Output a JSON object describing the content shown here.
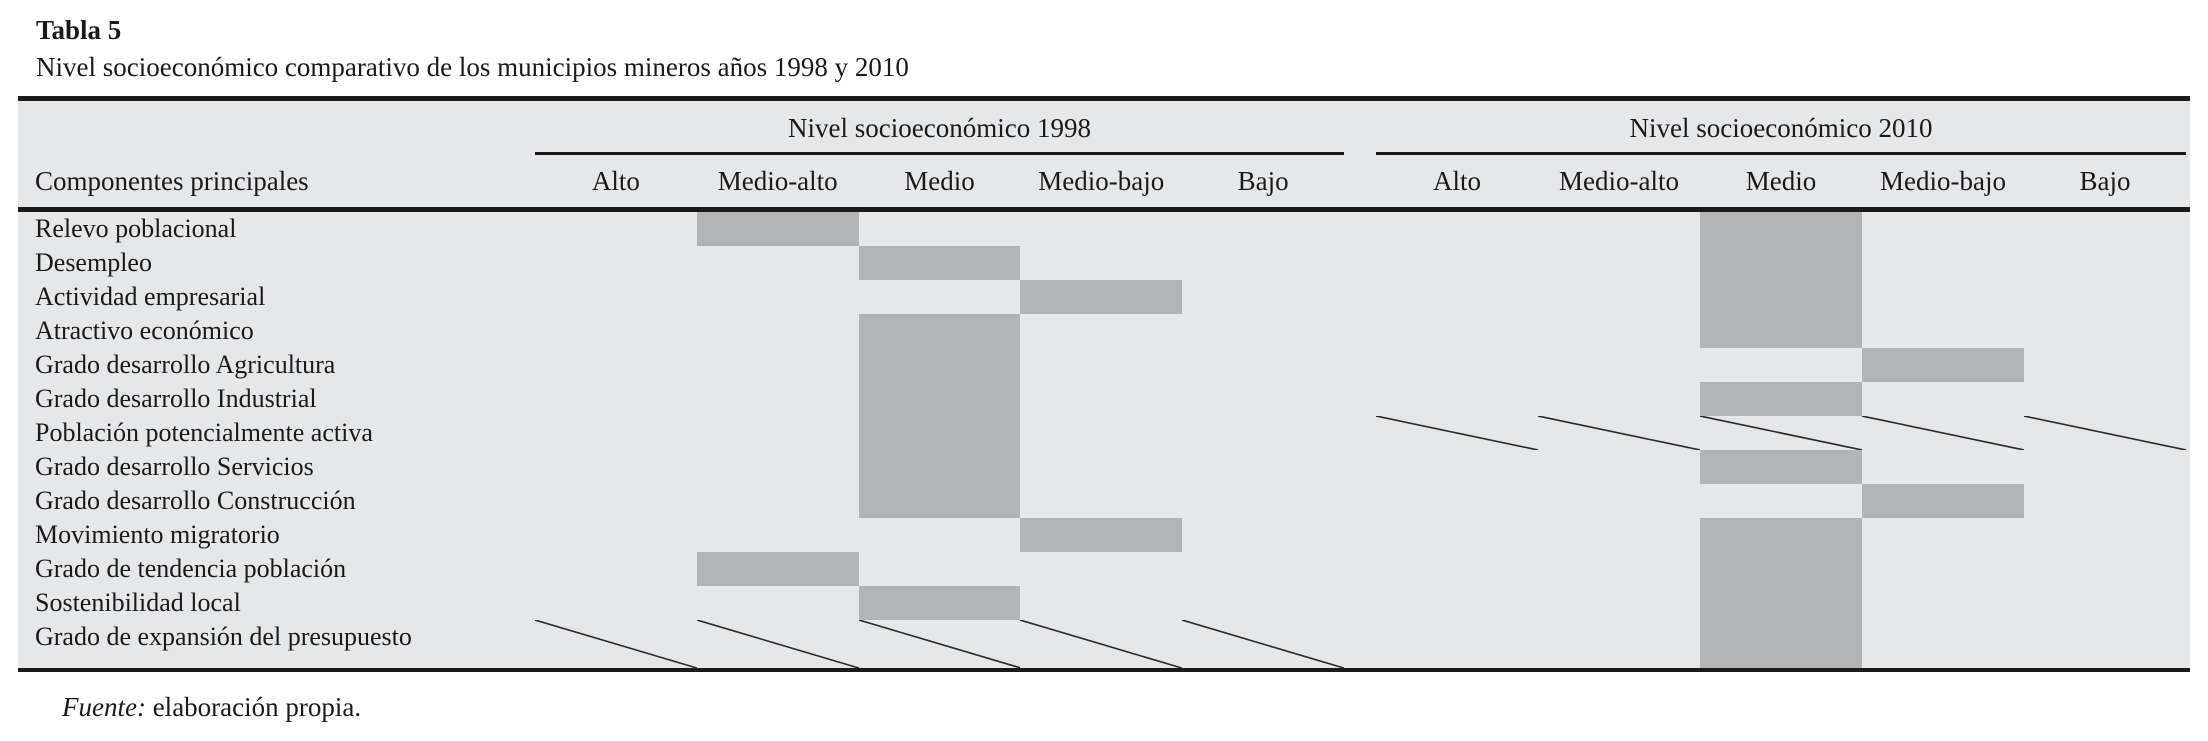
{
  "table": {
    "label": "Tabla 5",
    "caption": "Nivel socioeconómico comparativo de los municipios mineros años 1998 y 2010",
    "col_group_label": "Componentes principales",
    "groups": [
      {
        "key": "y1998",
        "title": "Nivel socioeconómico 1998"
      },
      {
        "key": "y2010",
        "title": "Nivel socioeconómico 2010"
      }
    ],
    "levels": [
      "Alto",
      "Medio-alto",
      "Medio",
      "Medio-bajo",
      "Bajo"
    ],
    "rows": [
      {
        "label": "Relevo poblacional",
        "y1998": "Medio-alto",
        "y2010": "Medio"
      },
      {
        "label": "Desempleo",
        "y1998": "Medio",
        "y2010": "Medio"
      },
      {
        "label": "Actividad empresarial",
        "y1998": "Medio-bajo",
        "y2010": "Medio"
      },
      {
        "label": "Atractivo económico",
        "y1998": "Medio",
        "y2010": "Medio"
      },
      {
        "label": "Grado desarrollo Agricultura",
        "y1998": "Medio",
        "y2010": "Medio-bajo"
      },
      {
        "label": "Grado desarrollo Industrial",
        "y1998": "Medio",
        "y2010": "Medio"
      },
      {
        "label": "Población potencialmente activa",
        "y1998": "Medio",
        "y2010": null,
        "hatch2010": true
      },
      {
        "label": "Grado desarrollo Servicios",
        "y1998": "Medio",
        "y2010": "Medio"
      },
      {
        "label": "Grado desarrollo Construcción",
        "y1998": "Medio",
        "y2010": "Medio-bajo"
      },
      {
        "label": "Movimiento migratorio",
        "y1998": "Medio-bajo",
        "y2010": "Medio"
      },
      {
        "label": "Grado de tendencia población",
        "y1998": "Medio-alto",
        "y2010": "Medio"
      },
      {
        "label": "Sostenibilidad local",
        "y1998": "Medio",
        "y2010": "Medio"
      },
      {
        "label": "Grado de expansión del presupuesto",
        "y1998": null,
        "hatch1998": true,
        "y2010": "Medio"
      }
    ],
    "source_prefix": "Fuente:",
    "source_text": " elaboración propia.",
    "colors": {
      "cell_fill": "#b2b4b6",
      "table_bg": "#e6e7e9",
      "rule": "#1a1a1a"
    }
  },
  "chart_data": {
    "type": "table",
    "title": "Tabla 5 — Nivel socioeconómico comparativo de los municipios mineros años 1998 y 2010",
    "row_header": "Componentes principales",
    "column_groups": [
      "Nivel socioeconómico 1998",
      "Nivel socioeconómico 2010"
    ],
    "levels": [
      "Alto",
      "Medio-alto",
      "Medio",
      "Medio-bajo",
      "Bajo"
    ],
    "rows": [
      {
        "componente": "Relevo poblacional",
        "nivel_1998": "Medio-alto",
        "nivel_2010": "Medio"
      },
      {
        "componente": "Desempleo",
        "nivel_1998": "Medio",
        "nivel_2010": "Medio"
      },
      {
        "componente": "Actividad empresarial",
        "nivel_1998": "Medio-bajo",
        "nivel_2010": "Medio"
      },
      {
        "componente": "Atractivo económico",
        "nivel_1998": "Medio",
        "nivel_2010": "Medio"
      },
      {
        "componente": "Grado desarrollo Agricultura",
        "nivel_1998": "Medio",
        "nivel_2010": "Medio-bajo"
      },
      {
        "componente": "Grado desarrollo Industrial",
        "nivel_1998": "Medio",
        "nivel_2010": "Medio"
      },
      {
        "componente": "Población potencialmente activa",
        "nivel_1998": "Medio",
        "nivel_2010": "crossed-out"
      },
      {
        "componente": "Grado desarrollo Servicios",
        "nivel_1998": "Medio",
        "nivel_2010": "Medio"
      },
      {
        "componente": "Grado desarrollo Construcción",
        "nivel_1998": "Medio",
        "nivel_2010": "Medio-bajo"
      },
      {
        "componente": "Movimiento migratorio",
        "nivel_1998": "Medio-bajo",
        "nivel_2010": "Medio"
      },
      {
        "componente": "Grado de tendencia población",
        "nivel_1998": "Medio-alto",
        "nivel_2010": "Medio"
      },
      {
        "componente": "Sostenibilidad local",
        "nivel_1998": "Medio",
        "nivel_2010": "Medio"
      },
      {
        "componente": "Grado de expansión del presupuesto",
        "nivel_1998": "crossed-out",
        "nivel_2010": "Medio"
      }
    ],
    "source": "Fuente: elaboración propia."
  }
}
